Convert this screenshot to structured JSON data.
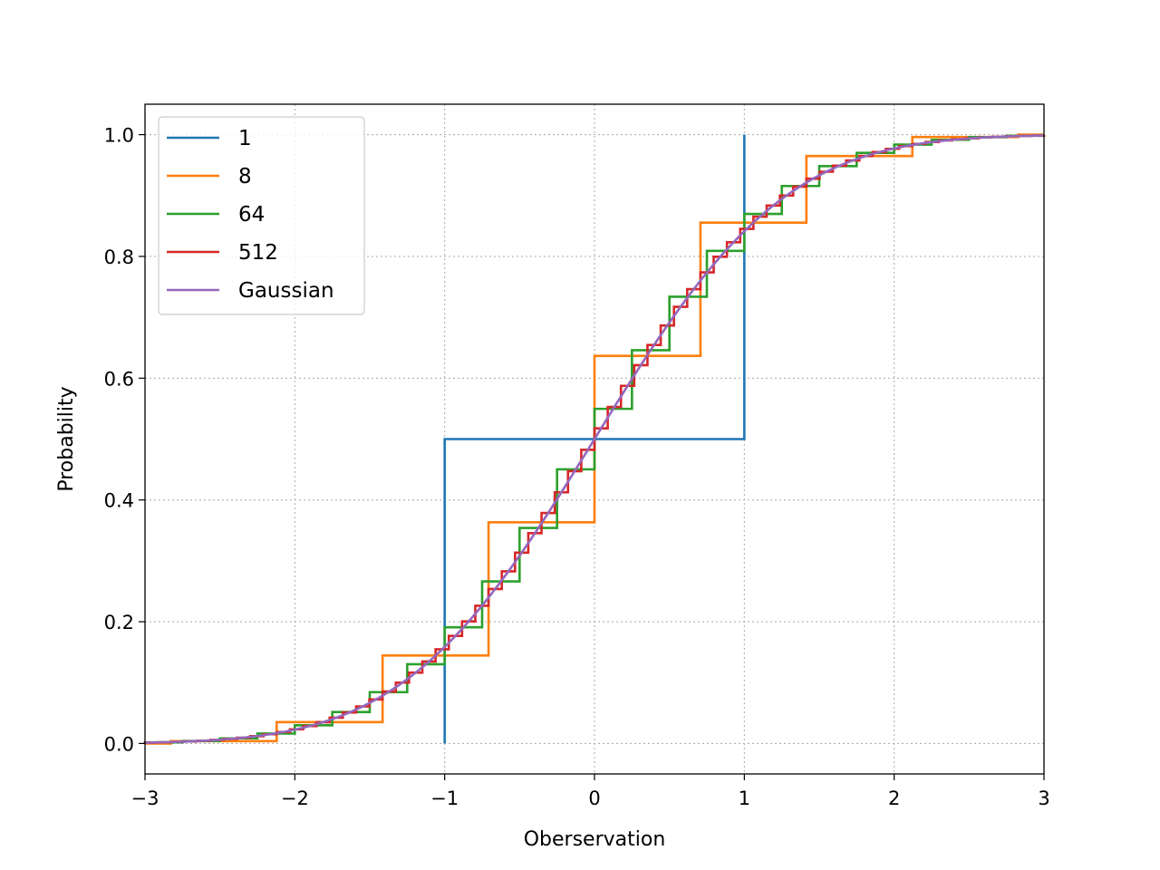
{
  "chart_data": {
    "type": "line",
    "title": "",
    "xlabel": "Oberservation",
    "ylabel": "Probability",
    "xlim": [
      -3,
      3
    ],
    "ylim": [
      -0.05,
      1.05
    ],
    "grid": true,
    "legend_position": "top-left",
    "x_ticks": [
      {
        "value": -3,
        "label": "−3"
      },
      {
        "value": -2,
        "label": "−2"
      },
      {
        "value": -1,
        "label": "−1"
      },
      {
        "value": 0,
        "label": "0"
      },
      {
        "value": 1,
        "label": "1"
      },
      {
        "value": 2,
        "label": "2"
      },
      {
        "value": 3,
        "label": "3"
      }
    ],
    "y_ticks": [
      {
        "value": 0.0,
        "label": "0.0"
      },
      {
        "value": 0.2,
        "label": "0.2"
      },
      {
        "value": 0.4,
        "label": "0.4"
      },
      {
        "value": 0.6,
        "label": "0.6"
      },
      {
        "value": 0.8,
        "label": "0.8"
      },
      {
        "value": 1.0,
        "label": "1.0"
      }
    ],
    "series": [
      {
        "name": "1",
        "color": "#1f77b4",
        "kind": "step",
        "n": 1
      },
      {
        "name": "8",
        "color": "#ff7f0e",
        "kind": "step",
        "n": 8
      },
      {
        "name": "64",
        "color": "#2ca02c",
        "kind": "step",
        "n": 64
      },
      {
        "name": "512",
        "color": "#d62728",
        "kind": "step",
        "n": 512
      },
      {
        "name": "Gaussian",
        "color": "#9467bd",
        "kind": "normal_cdf"
      }
    ]
  }
}
